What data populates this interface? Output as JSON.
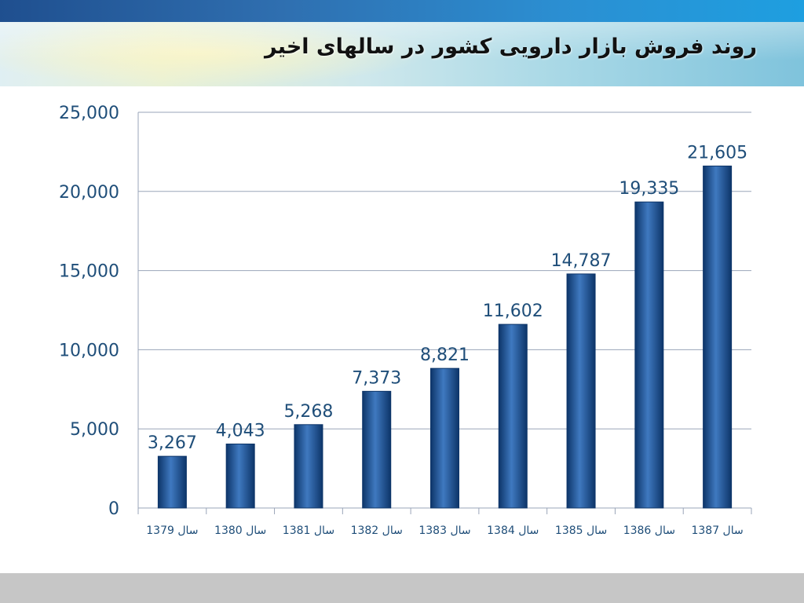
{
  "slide": {
    "title": "روند فروش بازار دارویی کشور در سالهای اخیر"
  },
  "colors": {
    "bar_dark": "#0d3569",
    "bar_mid": "#1a4f93",
    "bar_light": "#3f79c0",
    "label": "#1f4e79",
    "grid": "#9aa5b8"
  },
  "chart_data": {
    "type": "bar",
    "title": "روند فروش بازار دارویی کشور در سالهای اخیر",
    "xlabel": "",
    "ylabel": "",
    "categories": [
      "سال 1379",
      "سال 1380",
      "سال 1381",
      "سال 1382",
      "سال 1383",
      "سال 1384",
      "سال 1385",
      "سال 1386",
      "سال 1387"
    ],
    "values": [
      3267,
      4043,
      5268,
      7373,
      8821,
      11602,
      14787,
      19335,
      21605
    ],
    "value_labels": [
      "3,267",
      "4,043",
      "5,268",
      "7,373",
      "8,821",
      "11,602",
      "14,787",
      "19,335",
      "21,605"
    ],
    "yticks": [
      0,
      5000,
      10000,
      15000,
      20000,
      25000
    ],
    "ytick_labels": [
      "0",
      "5,000",
      "10,000",
      "15,000",
      "20,000",
      "25,000"
    ],
    "ylim": [
      0,
      25000
    ],
    "grid": true,
    "legend": "none"
  }
}
